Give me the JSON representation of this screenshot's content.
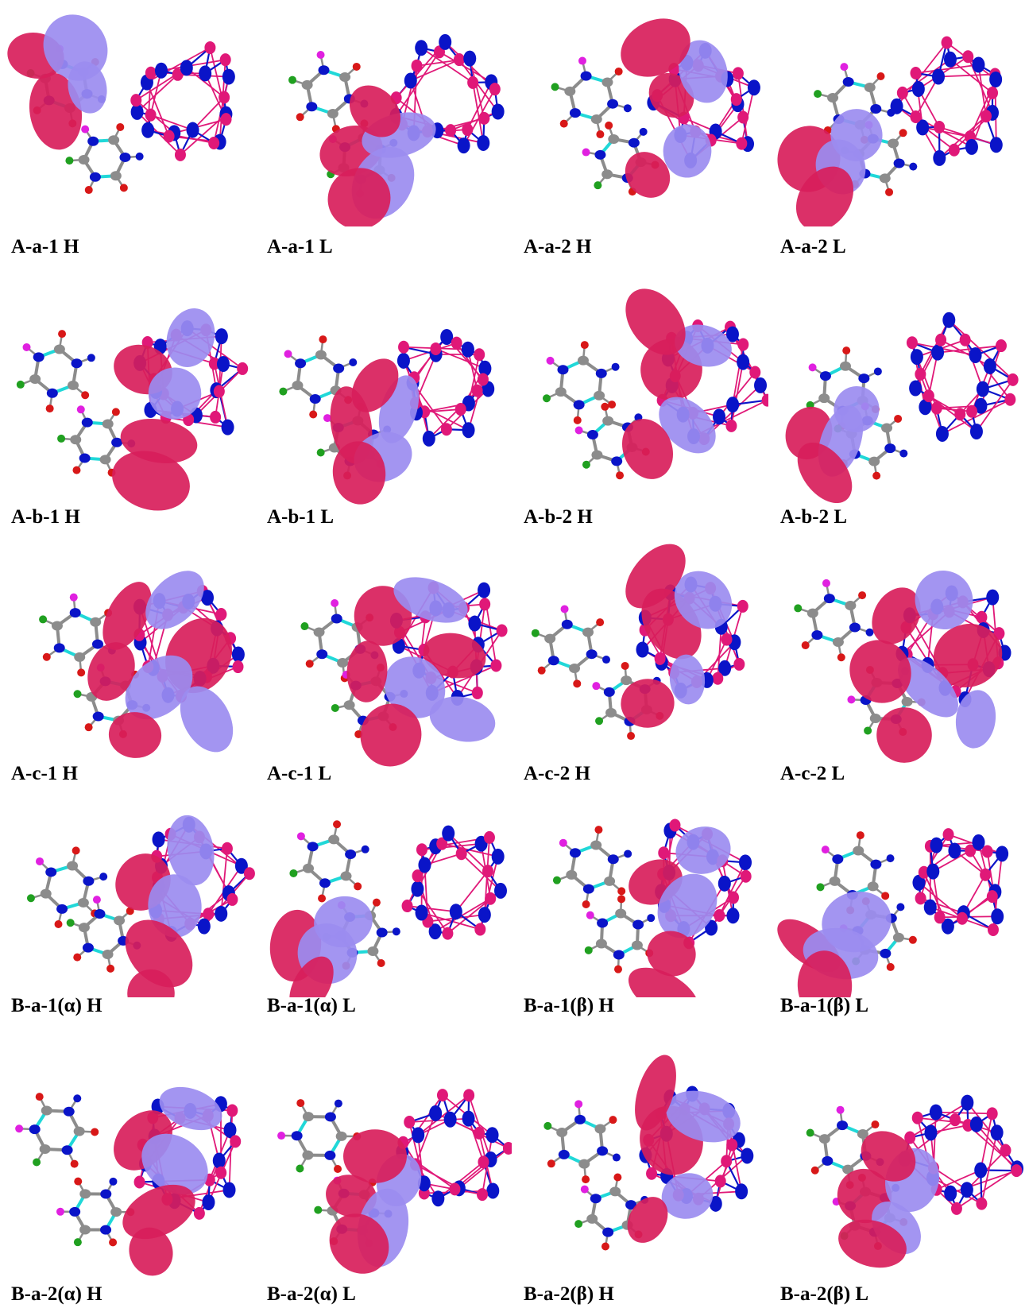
{
  "figure": {
    "colors": {
      "orbital_positive": "#d81e5b",
      "orbital_negative": "#9b8cf0",
      "nitrogen": "#0a14c8",
      "boron_pink": "#e01878",
      "oxygen": "#d81818",
      "carbon": "#8c8c8c",
      "fluorine": "#20a020",
      "iodine_magenta": "#e020e0",
      "bond_cyan": "#20d8d8"
    },
    "rows": [
      {
        "panels": [
          {
            "label": "A-a-1 H",
            "lobe_pattern": "left-donor"
          },
          {
            "label": "A-a-1 L",
            "lobe_pattern": "mid-acceptor"
          },
          {
            "label": "A-a-2 H",
            "lobe_pattern": "cage-center"
          },
          {
            "label": "A-a-2 L",
            "lobe_pattern": "left-low"
          }
        ]
      },
      {
        "panels": [
          {
            "label": "A-b-1 H",
            "lobe_pattern": "cage-left"
          },
          {
            "label": "A-b-1 L",
            "lobe_pattern": "mid-acceptor"
          },
          {
            "label": "A-b-2 H",
            "lobe_pattern": "cage-center"
          },
          {
            "label": "A-b-2 L",
            "lobe_pattern": "left-low"
          }
        ]
      },
      {
        "panels": [
          {
            "label": "A-c-1 H",
            "lobe_pattern": "cage-full"
          },
          {
            "label": "A-c-1 L",
            "lobe_pattern": "cage-full"
          },
          {
            "label": "A-c-2 H",
            "lobe_pattern": "cage-center"
          },
          {
            "label": "A-c-2 L",
            "lobe_pattern": "cage-full"
          }
        ]
      },
      {
        "panels": [
          {
            "label": "B-a-1(α) H",
            "lobe_pattern": "cage-left"
          },
          {
            "label": "B-a-1(α) L",
            "lobe_pattern": "left-low"
          },
          {
            "label": "B-a-1(β) H",
            "lobe_pattern": "cage-left"
          },
          {
            "label": "B-a-1(β) L",
            "lobe_pattern": "left-low"
          }
        ]
      },
      {
        "panels": [
          {
            "label": "B-a-2(α) H",
            "lobe_pattern": "cage-left"
          },
          {
            "label": "B-a-2(α) L",
            "lobe_pattern": "mid-acceptor"
          },
          {
            "label": "B-a-2(β) H",
            "lobe_pattern": "cage-center"
          },
          {
            "label": "B-a-2(β) L",
            "lobe_pattern": "mid-acceptor"
          }
        ]
      }
    ]
  }
}
